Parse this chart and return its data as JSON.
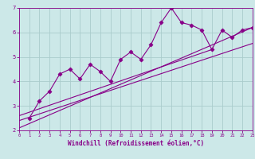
{
  "xlabel": "Windchill (Refroidissement éolien,°C)",
  "ylabel": "",
  "bg_color": "#cce8e8",
  "grid_color": "#aacccc",
  "line_color": "#880088",
  "xlim": [
    0,
    23
  ],
  "ylim": [
    2,
    7
  ],
  "xticks": [
    0,
    1,
    2,
    3,
    4,
    5,
    6,
    7,
    8,
    9,
    10,
    11,
    12,
    13,
    14,
    15,
    16,
    17,
    18,
    19,
    20,
    21,
    22,
    23
  ],
  "yticks": [
    2,
    3,
    4,
    5,
    6,
    7
  ],
  "scatter_x": [
    1,
    2,
    3,
    4,
    5,
    6,
    7,
    8,
    9,
    10,
    11,
    12,
    13,
    14,
    15,
    16,
    17,
    18,
    19,
    20,
    21,
    22,
    23
  ],
  "scatter_y": [
    2.5,
    3.2,
    3.6,
    4.3,
    4.5,
    4.1,
    4.7,
    4.4,
    4.0,
    4.9,
    5.2,
    4.9,
    5.5,
    6.4,
    7.0,
    6.4,
    6.3,
    6.1,
    5.3,
    6.1,
    5.8,
    6.1,
    6.2
  ],
  "line1_x": [
    0,
    23
  ],
  "line1_y": [
    2.1,
    6.2
  ],
  "line2_x": [
    0,
    23
  ],
  "line2_y": [
    2.4,
    5.55
  ],
  "line3_x": [
    0,
    19
  ],
  "line3_y": [
    2.6,
    5.3
  ]
}
